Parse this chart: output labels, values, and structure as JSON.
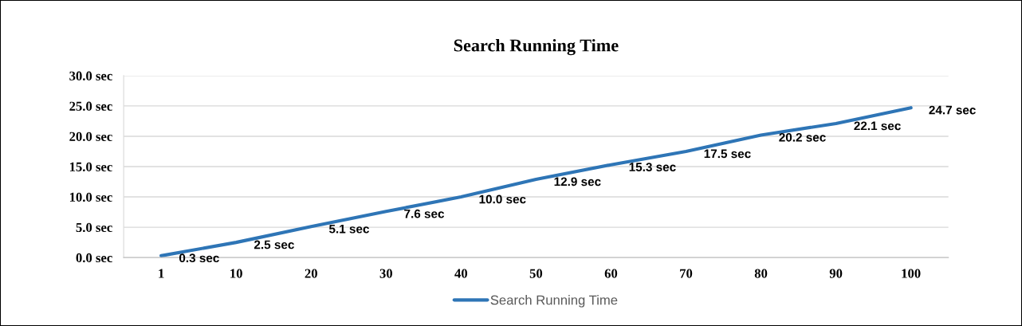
{
  "chart_data": {
    "type": "line",
    "title": "Search Running Time",
    "categories": [
      "1",
      "10",
      "20",
      "30",
      "40",
      "50",
      "60",
      "70",
      "80",
      "90",
      "100"
    ],
    "series": [
      {
        "name": "Search Running Time",
        "color": "#2e75b6",
        "values": [
          0.3,
          2.5,
          5.1,
          7.6,
          10.0,
          12.9,
          15.3,
          17.5,
          20.2,
          22.1,
          24.7
        ],
        "value_labels": [
          "0.3 sec",
          "2.5 sec",
          "5.1 sec",
          "7.6 sec",
          "10.0 sec",
          "12.9 sec",
          "15.3 sec",
          "17.5 sec",
          "20.2 sec",
          "22.1 sec",
          "24.7 sec"
        ]
      }
    ],
    "ylim": [
      0,
      30
    ],
    "yticks": [
      {
        "value": 0,
        "label": "0.0 sec"
      },
      {
        "value": 5,
        "label": "5.0 sec"
      },
      {
        "value": 10,
        "label": "10.0 sec"
      },
      {
        "value": 15,
        "label": "15.0 sec"
      },
      {
        "value": 20,
        "label": "20.0 sec"
      },
      {
        "value": 25,
        "label": "25.0 sec"
      },
      {
        "value": 30,
        "label": "30.0 sec"
      }
    ],
    "grid": "y",
    "legend": "bottom",
    "marker": "none",
    "line_style": "solid"
  }
}
